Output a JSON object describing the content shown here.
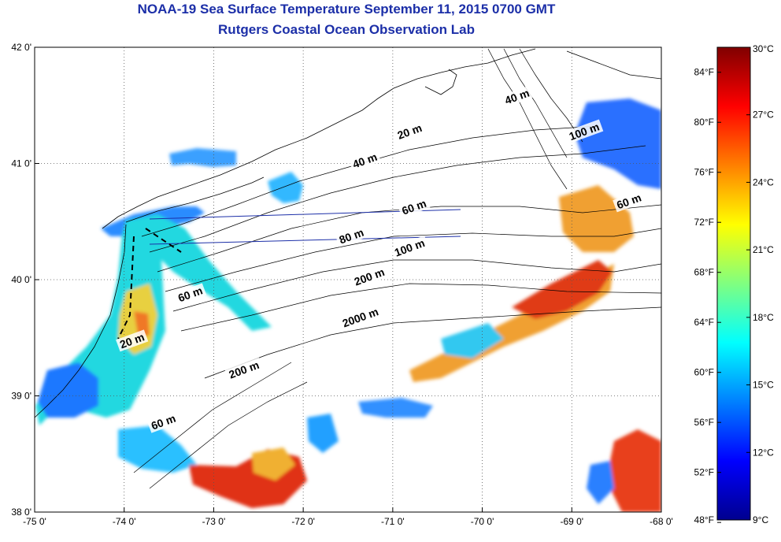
{
  "title": "NOAA-19 Sea Surface Temperature September 11, 2015 0700 GMT",
  "subtitle": "Rutgers Coastal Ocean Observation Lab",
  "axes": {
    "lon_labels": [
      "-75 0'",
      "-74 0'",
      "-73 0'",
      "-72 0'",
      "-71 0'",
      "-70 0'",
      "-69 0'",
      "-68 0'"
    ],
    "lat_labels": [
      "42 0'",
      "41 0'",
      "40 0'",
      "39 0'",
      "38 0'"
    ],
    "lon_range": [
      -75,
      -68
    ],
    "lat_range": [
      38,
      42
    ],
    "grid": "dotted"
  },
  "contour_labels": [
    {
      "text": "20 m",
      "lon": -70.8,
      "lat": 41.25
    },
    {
      "text": "40 m",
      "lon": -71.3,
      "lat": 41.0
    },
    {
      "text": "40 m",
      "lon": -69.6,
      "lat": 41.55
    },
    {
      "text": "100 m",
      "lon": -68.85,
      "lat": 41.25
    },
    {
      "text": "60 m",
      "lon": -70.75,
      "lat": 40.6
    },
    {
      "text": "60 m",
      "lon": -68.35,
      "lat": 40.65
    },
    {
      "text": "80 m",
      "lon": -71.45,
      "lat": 40.35
    },
    {
      "text": "100 m",
      "lon": -70.8,
      "lat": 40.25
    },
    {
      "text": "200 m",
      "lon": -71.25,
      "lat": 40.0
    },
    {
      "text": "60 m",
      "lon": -73.25,
      "lat": 39.85
    },
    {
      "text": "2000 m",
      "lon": -71.35,
      "lat": 39.65
    },
    {
      "text": "200 m",
      "lon": -72.65,
      "lat": 39.2
    },
    {
      "text": "20 m",
      "lon": -73.9,
      "lat": 39.45
    },
    {
      "text": "60 m",
      "lon": -73.55,
      "lat": 38.75
    }
  ],
  "colorbar": {
    "celsius_labels": [
      "30°C",
      "27°C",
      "24°C",
      "21°C",
      "18°C",
      "15°C",
      "12°C",
      "9°C"
    ],
    "fahrenheit_labels": [
      "84°F",
      "80°F",
      "76°F",
      "72°F",
      "68°F",
      "64°F",
      "60°F",
      "56°F",
      "52°F",
      "48°F"
    ],
    "range_c": [
      9,
      30
    ],
    "colors": [
      "#00008f",
      "#0000ff",
      "#0080ff",
      "#00ffff",
      "#80ff80",
      "#ffff00",
      "#ff8000",
      "#ff0000",
      "#800000"
    ]
  }
}
